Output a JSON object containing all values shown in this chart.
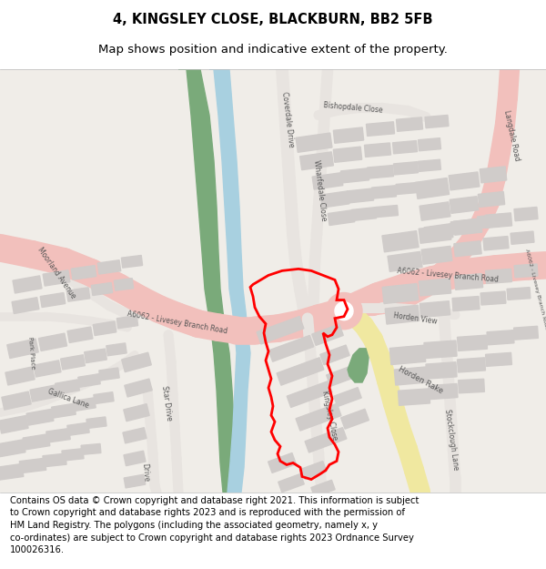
{
  "title": "4, KINGSLEY CLOSE, BLACKBURN, BB2 5FB",
  "subtitle": "Map shows position and indicative extent of the property.",
  "footer_line1": "Contains OS data © Crown copyright and database right 2021. This information is subject",
  "footer_line2": "to Crown copyright and database rights 2023 and is reproduced with the permission of",
  "footer_line3": "HM Land Registry. The polygons (including the associated geometry, namely x, y",
  "footer_line4": "co-ordinates) are subject to Crown copyright and database rights 2023 Ordnance Survey",
  "footer_line5": "100026316.",
  "bg_color": "#f0ede8",
  "road_pink": "#f2c0bc",
  "road_yellow": "#f0e8a0",
  "water_blue": "#a8d0e0",
  "green_color": "#7aaa7a",
  "building_gray": "#d0ccca",
  "road_gray": "#e8e4e0",
  "red_boundary": "#ff0000",
  "fig_width": 6.0,
  "fig_height": 6.25,
  "dpi": 100,
  "title_fontsize": 10.5,
  "subtitle_fontsize": 9.5,
  "footer_fontsize": 7.2,
  "label_fontsize": 5.5
}
